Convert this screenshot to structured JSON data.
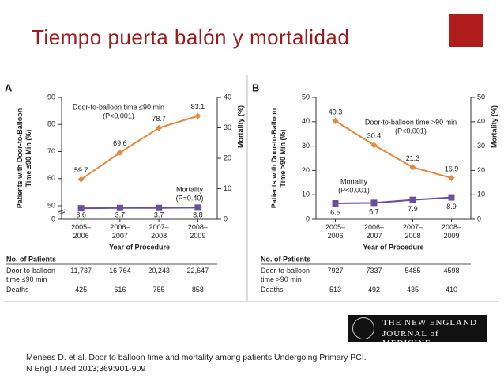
{
  "slide": {
    "title": "Tiempo puerta balón y mortalidad",
    "citation": [
      "Menees D. et al. Door to balloon time and mortality among patients Undergoing Primary PCI.",
      "N Engl J Med  2013;369:901-909"
    ],
    "logo": [
      "THE NEW ENGLAND",
      "JOURNAL of MEDICINE"
    ]
  },
  "chart_data": [
    {
      "type": "line",
      "panel": "A",
      "ylabel": "Patients with Door-to-Balloon\nTime ≤90 Min (%)",
      "y2label": "Mortality (%)",
      "xlabel": "Year of Procedure",
      "categories": [
        "2005–\n2006",
        "2006–\n2007",
        "2007–\n2008",
        "2008–\n2009"
      ],
      "ylim": [
        0,
        90
      ],
      "yticks": [
        0,
        50,
        60,
        70,
        80,
        90
      ],
      "axis_break": true,
      "y2lim": [
        0,
        40
      ],
      "y2ticks": [
        0,
        10,
        20,
        30,
        40
      ],
      "series": [
        {
          "name": "Door-to-balloon time ≤90 min",
          "note": "(P<0.001)",
          "color": "#e8883a",
          "values": [
            59.7,
            69.6,
            78.7,
            83.1
          ]
        },
        {
          "name": "Mortality",
          "note": "(P=0.40)",
          "color": "#6b4f9e",
          "axis": "y2",
          "values": [
            3.6,
            3.7,
            3.7,
            3.8
          ]
        }
      ],
      "table": {
        "title": "No. of Patients",
        "rows": [
          {
            "label": "Door-to-balloon\n   time ≤90 min",
            "cells": [
              "11,737",
              "16,764",
              "20,243",
              "22,647"
            ]
          },
          {
            "label": "Deaths",
            "cells": [
              "425",
              "616",
              "755",
              "858"
            ]
          }
        ]
      }
    },
    {
      "type": "line",
      "panel": "B",
      "ylabel": "Patients with Door-to-Balloon\nTime >90 Min (%)",
      "y2label": "Mortality (%)",
      "xlabel": "Year of Procedure",
      "categories": [
        "2005–\n2006",
        "2006–\n2007",
        "2007–\n2008",
        "2008–\n2009"
      ],
      "ylim": [
        0,
        50
      ],
      "yticks": [
        0,
        10,
        20,
        30,
        40,
        50
      ],
      "axis_break": false,
      "y2lim": [
        0,
        50
      ],
      "y2ticks": [
        0,
        10,
        20,
        30,
        40,
        50
      ],
      "series": [
        {
          "name": "Door-to-balloon time >90 min",
          "note": "(P<0.001)",
          "color": "#e8883a",
          "values": [
            40.3,
            30.4,
            21.3,
            16.9
          ]
        },
        {
          "name": "Mortality",
          "note": "(P<0.001)",
          "color": "#6b4f9e",
          "axis": "y2",
          "values": [
            6.5,
            6.7,
            7.9,
            8.9
          ]
        }
      ],
      "table": {
        "title": "No. of Patients",
        "rows": [
          {
            "label": "Door-to-balloon\n   time >90 min",
            "cells": [
              "7927",
              "7337",
              "5485",
              "4598"
            ]
          },
          {
            "label": "Deaths",
            "cells": [
              "513",
              "492",
              "435",
              "410"
            ]
          }
        ]
      }
    }
  ]
}
